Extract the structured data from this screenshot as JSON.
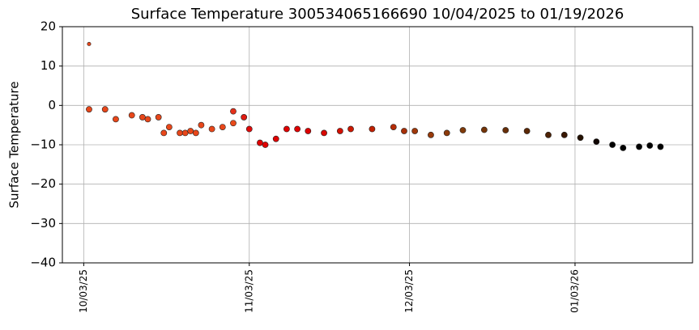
{
  "chart_data": {
    "type": "scatter",
    "title": "Surface Temperature 300534065166690  10/04/2025 to 01/19/2026",
    "ylabel": "Surface Temperature",
    "x": [
      "10/04/25",
      "10/04/25",
      "10/07/25",
      "10/09/25",
      "10/12/25",
      "10/14/25",
      "10/15/25",
      "10/17/25",
      "10/18/25",
      "10/19/25",
      "10/21/25",
      "10/22/25",
      "10/23/25",
      "10/24/25",
      "10/25/25",
      "10/27/25",
      "10/29/25",
      "10/31/25",
      "10/31/25",
      "11/02/25",
      "11/03/25",
      "11/05/25",
      "11/06/25",
      "11/08/25",
      "11/10/25",
      "11/12/25",
      "11/14/25",
      "11/17/25",
      "11/20/25",
      "11/22/25",
      "11/26/25",
      "11/30/25",
      "12/02/25",
      "12/04/25",
      "12/07/25",
      "12/10/25",
      "12/13/25",
      "12/17/25",
      "12/21/25",
      "12/25/25",
      "12/29/25",
      "01/01/26",
      "01/04/26",
      "01/07/26",
      "01/10/26",
      "01/12/26",
      "01/15/26",
      "01/17/26",
      "01/19/26"
    ],
    "values": [
      15.6,
      -1,
      -1,
      -3.5,
      -2.5,
      -3,
      -3.5,
      -3,
      -7,
      -5.5,
      -7,
      -7,
      -6.5,
      -7,
      -5,
      -6,
      -5.5,
      -4.5,
      -1.5,
      -3,
      -6,
      -9.5,
      -10,
      -8.5,
      -6,
      -6,
      -6.5,
      -7,
      -6.5,
      -6,
      -6,
      -5.5,
      -6.5,
      -6.5,
      -7.5,
      -7,
      -6.3,
      -6.2,
      -6.3,
      -6.5,
      -7.5,
      -7.5,
      -8.2,
      -9.2,
      -10,
      -10.8,
      -10.5,
      -10.2,
      -10.5
    ],
    "colors": [
      "#e8471a",
      "#e8471a",
      "#e8471a",
      "#e8471a",
      "#e8471a",
      "#e8471a",
      "#e8471a",
      "#e8471a",
      "#e8471a",
      "#e8471a",
      "#e8471a",
      "#e8471a",
      "#e8471a",
      "#e8471a",
      "#e8471a",
      "#e8471a",
      "#e8471a",
      "#e84a1a",
      "#e4301a",
      "#e01a10",
      "#e00a0a",
      "#e00000",
      "#e00000",
      "#e00000",
      "#e00000",
      "#e00000",
      "#dc0000",
      "#d80800",
      "#d41000",
      "#cc1800",
      "#c02000",
      "#b42c08",
      "#a83008",
      "#a0380a",
      "#983a0a",
      "#8c3a0a",
      "#803a0a",
      "#743408",
      "#682e08",
      "#5c2806",
      "#4e2204",
      "#3a1802",
      "#241000",
      "#100500",
      "#000000",
      "#000000",
      "#000000",
      "#000000",
      "#000000"
    ],
    "xlim": [
      "09/29/25",
      "01/25/26"
    ],
    "xticks": [
      "10/03/25",
      "11/03/25",
      "12/03/25",
      "01/03/26"
    ],
    "ylim": [
      -40,
      20
    ],
    "yticks": [
      {
        "value": -40,
        "label": "−40"
      },
      {
        "value": -30,
        "label": "−30"
      },
      {
        "value": -20,
        "label": "−20"
      },
      {
        "value": -10,
        "label": "−10"
      },
      0,
      10,
      20
    ],
    "grid": true
  }
}
